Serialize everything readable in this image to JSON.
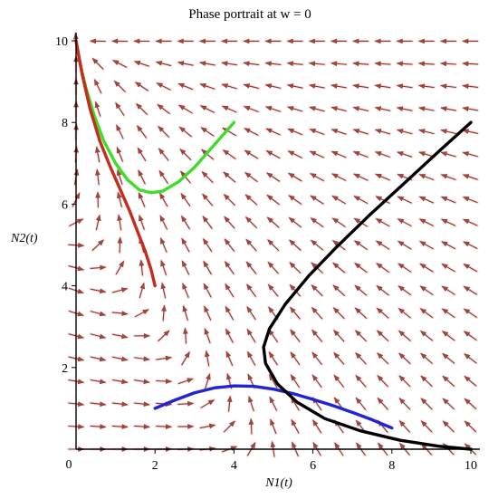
{
  "chart_data": {
    "type": "line",
    "title": "Phase portrait at w = 0",
    "xlabel": "N1(t)",
    "ylabel": "N2(t)",
    "xlim": [
      0,
      10
    ],
    "ylim": [
      0,
      10
    ],
    "x_ticks": [
      "2",
      "4",
      "6",
      "8",
      "10"
    ],
    "y_ticks": [
      "2",
      "4",
      "6",
      "8",
      "10"
    ],
    "origin_label": "0",
    "grid": false,
    "vector_field": {
      "description_free": true,
      "arrow_color": "#a5453a",
      "grid_x": [
        0,
        0.555,
        1.11,
        1.665,
        2.22,
        2.775,
        3.33,
        3.885,
        4.44,
        4.995,
        5.55,
        6.105,
        6.66,
        7.215,
        7.77,
        8.325,
        8.88,
        9.435,
        9.99
      ],
      "grid_y": [
        0,
        0.555,
        1.11,
        1.665,
        2.22,
        2.775,
        3.33,
        3.885,
        4.44,
        4.995,
        5.55,
        6.105,
        6.66,
        7.215,
        7.77,
        8.325,
        8.88,
        9.435,
        9.99
      ]
    },
    "series": [
      {
        "color": "#3fdc2a",
        "x": [
          0,
          0.1,
          0.25,
          0.45,
          0.7,
          1.0,
          1.3,
          1.6,
          1.9,
          2.2,
          2.6,
          3.0,
          3.5,
          4.0
        ],
        "y": [
          10.0,
          9.45,
          8.85,
          8.2,
          7.55,
          7.0,
          6.6,
          6.35,
          6.28,
          6.32,
          6.55,
          6.9,
          7.45,
          8.0
        ]
      },
      {
        "color": "#c62b1e",
        "x": [
          0,
          0.15,
          0.35,
          0.6,
          0.85,
          1.1,
          1.35,
          1.55,
          1.75,
          1.9,
          2.0
        ],
        "y": [
          10.0,
          9.2,
          8.35,
          7.55,
          6.95,
          6.4,
          5.85,
          5.35,
          4.85,
          4.4,
          4.0
        ]
      },
      {
        "color": "#2323d6",
        "x": [
          2.0,
          2.5,
          3.0,
          3.5,
          4.0,
          4.5,
          5.0,
          5.5,
          6.0,
          6.5,
          7.0,
          7.5,
          8.0
        ],
        "y": [
          1.0,
          1.2,
          1.38,
          1.5,
          1.55,
          1.54,
          1.47,
          1.36,
          1.22,
          1.07,
          0.9,
          0.72,
          0.52
        ]
      },
      {
        "color": "#000000",
        "x": [
          10.0,
          9.2,
          8.3,
          7.4,
          6.6,
          5.9,
          5.3,
          4.9,
          4.75,
          4.8,
          5.1,
          5.6,
          6.3,
          7.2,
          8.2,
          9.2,
          10.0
        ],
        "y": [
          8.0,
          7.3,
          6.5,
          5.7,
          4.95,
          4.25,
          3.55,
          2.95,
          2.5,
          2.1,
          1.6,
          1.15,
          0.75,
          0.45,
          0.22,
          0.07,
          0.0
        ]
      }
    ]
  }
}
